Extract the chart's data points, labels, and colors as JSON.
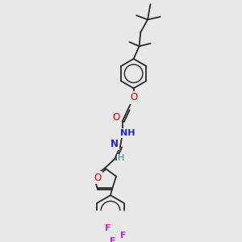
{
  "background_color": "#e8e8e8",
  "bond_color": "#2a2a2a",
  "atom_colors": {
    "O": "#dd0000",
    "N": "#2222cc",
    "F": "#cc22cc",
    "H_label": "#2a8a8a"
  },
  "figsize": [
    3.0,
    3.0
  ],
  "dpi": 100,
  "lw": 1.3
}
